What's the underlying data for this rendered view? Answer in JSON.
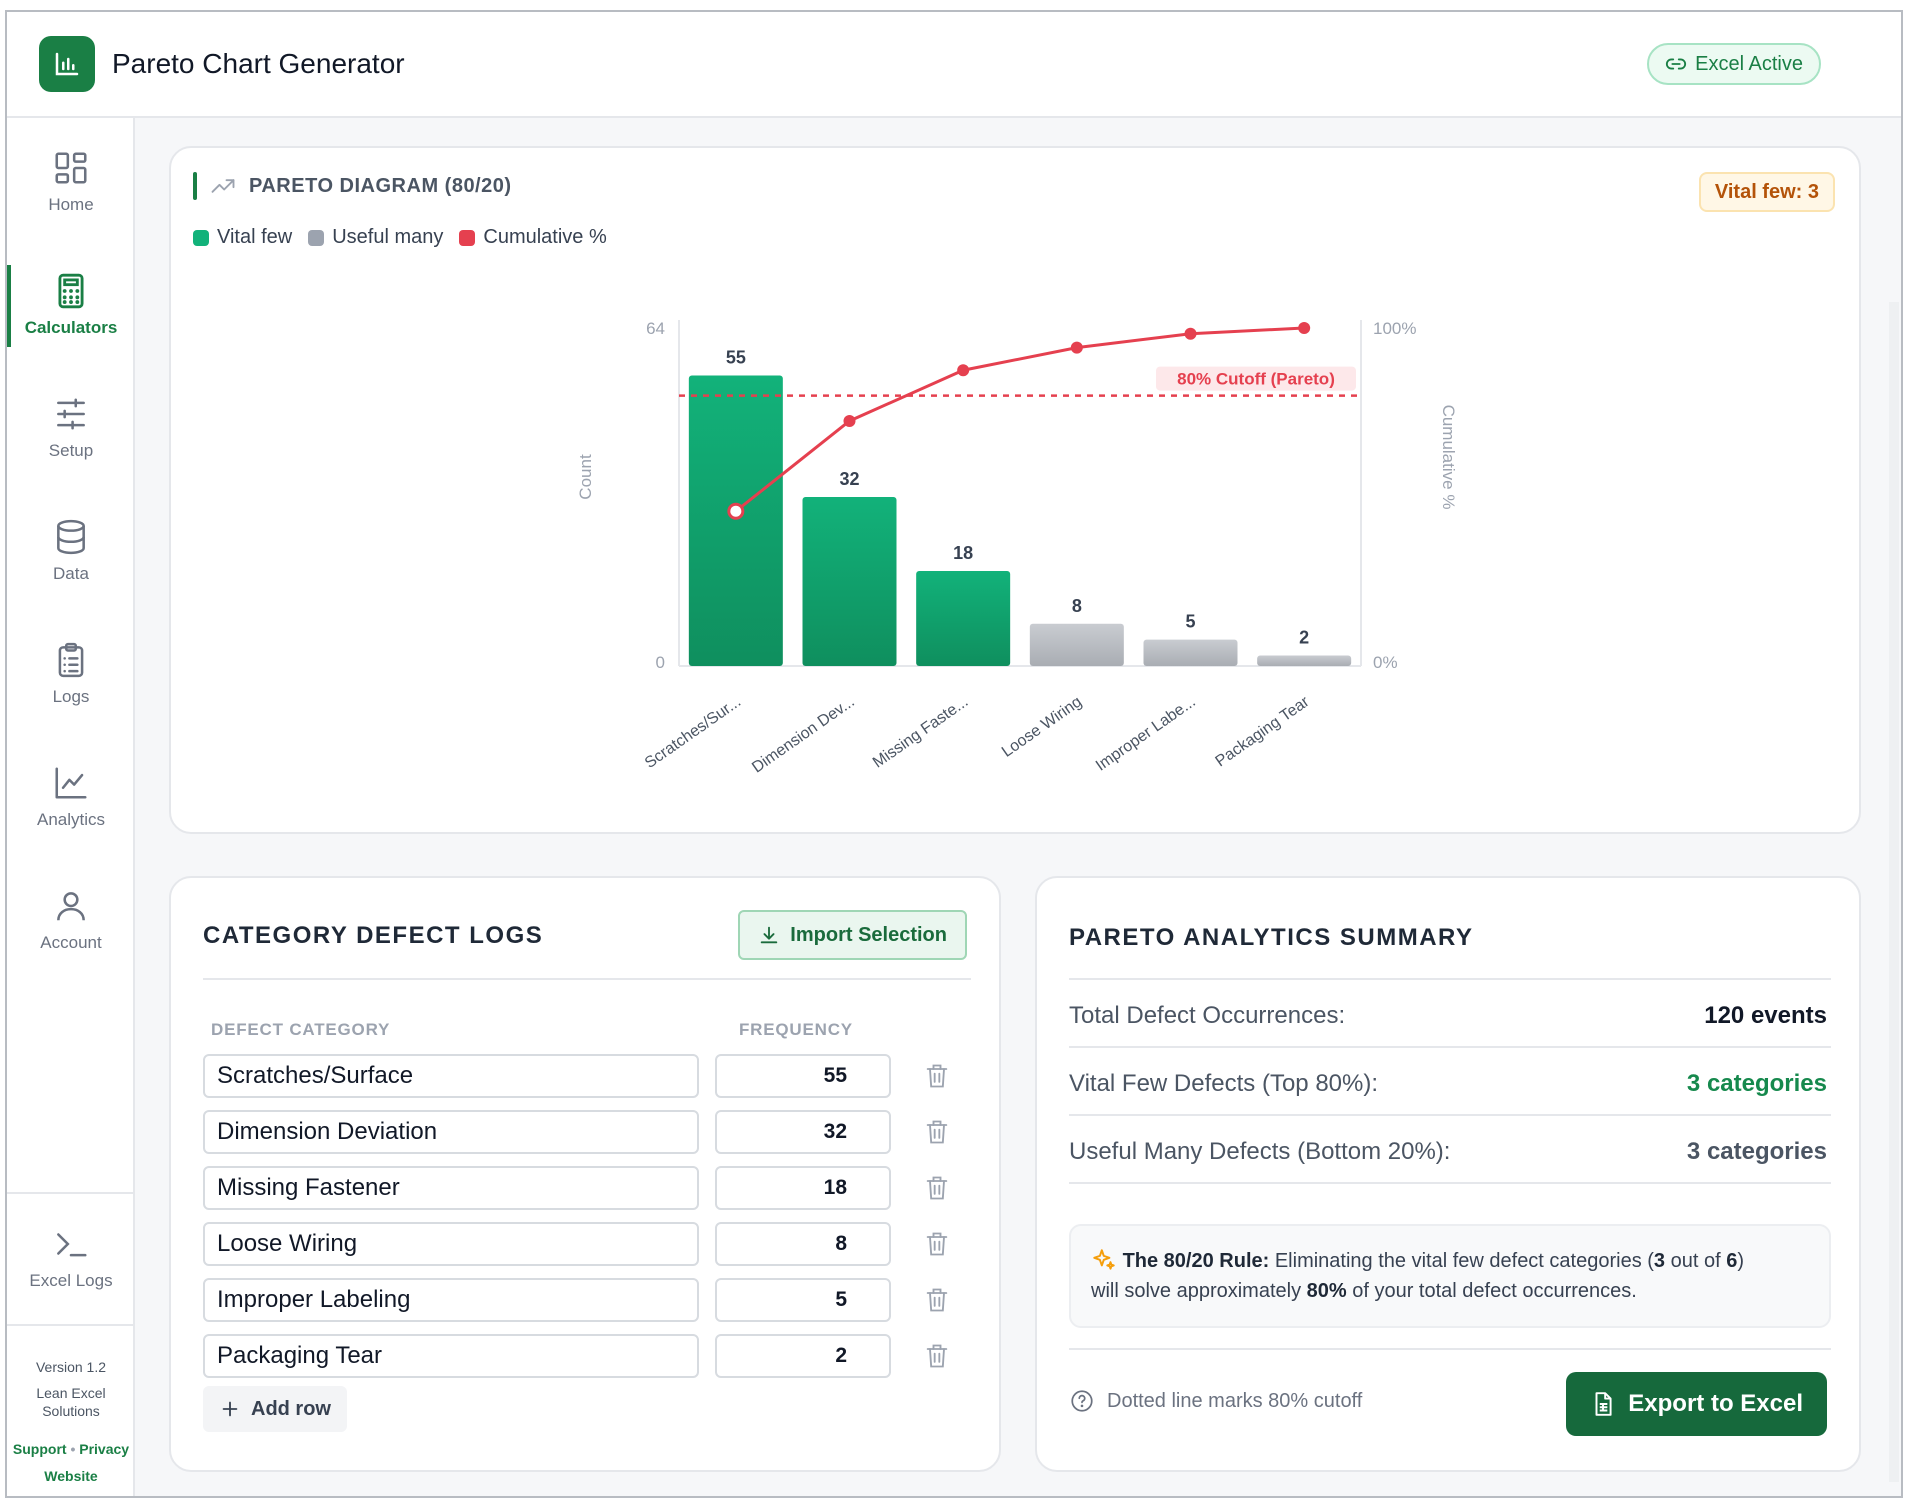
{
  "app": {
    "title": "Pareto Chart Generator",
    "status_pill": "Excel Active",
    "brand_color": "#1a7f45"
  },
  "sidebar": {
    "items": [
      {
        "label": "Home",
        "icon": "grid-icon",
        "active": false
      },
      {
        "label": "Calculators",
        "icon": "calculator-icon",
        "active": true
      },
      {
        "label": "Setup",
        "icon": "sliders-icon",
        "active": false
      },
      {
        "label": "Data",
        "icon": "database-icon",
        "active": false
      },
      {
        "label": "Logs",
        "icon": "clipboard-icon",
        "active": false
      },
      {
        "label": "Analytics",
        "icon": "line-chart-icon",
        "active": false
      },
      {
        "label": "Account",
        "icon": "user-icon",
        "active": false
      }
    ],
    "excel_logs": "Excel Logs",
    "version": "Version 1.2",
    "company": "Lean Excel Solutions",
    "links": {
      "support": "Support",
      "separator": "•",
      "privacy": "Privacy",
      "website": "Website"
    }
  },
  "chart_panel": {
    "title": "PARETO DIAGRAM (80/20)",
    "badge": "Vital few: 3",
    "legend": [
      {
        "label": "Vital few",
        "color": "#12b27a"
      },
      {
        "label": "Useful many",
        "color": "#9ca3af"
      },
      {
        "label": "Cumulative %",
        "color": "#e5404f"
      }
    ],
    "cutoff_label": "80% Cutoff (Pareto)"
  },
  "chart_data": {
    "type": "bar",
    "categories": [
      "Scratches/Sur...",
      "Dimension Dev...",
      "Missing Faste...",
      "Loose Wiring",
      "Improper Labe...",
      "Packaging Tear"
    ],
    "series": [
      {
        "name": "Count",
        "values": [
          55,
          32,
          18,
          8,
          5,
          2
        ],
        "groups": [
          "vital",
          "vital",
          "vital",
          "useful",
          "useful",
          "useful"
        ]
      },
      {
        "name": "Cumulative %",
        "values": [
          45.8,
          72.5,
          87.5,
          94.2,
          98.3,
          100
        ]
      }
    ],
    "ylabel": "Count",
    "y2label": "Cumulative %",
    "ylim": [
      0,
      64
    ],
    "y2lim": [
      0,
      100
    ],
    "y_ticks": [
      "64",
      "0"
    ],
    "y2_ticks": [
      "100%",
      "0%"
    ],
    "cutoff_pct": 80,
    "bar_colors": {
      "vital": "#12b27a",
      "useful": "#c2c5ca"
    },
    "line_color": "#e5404f"
  },
  "logs_panel": {
    "title": "CATEGORY DEFECT LOGS",
    "import_label": "Import Selection",
    "col_category": "DEFECT CATEGORY",
    "col_frequency": "FREQUENCY",
    "rows": [
      {
        "category": "Scratches/Surface",
        "frequency": "55"
      },
      {
        "category": "Dimension Deviation",
        "frequency": "32"
      },
      {
        "category": "Missing Fastener",
        "frequency": "18"
      },
      {
        "category": "Loose Wiring",
        "frequency": "8"
      },
      {
        "category": "Improper Labeling",
        "frequency": "5"
      },
      {
        "category": "Packaging Tear",
        "frequency": "2"
      }
    ],
    "add_row": "Add row"
  },
  "summary_panel": {
    "title": "PARETO ANALYTICS SUMMARY",
    "total_label": "Total Defect Occurrences:",
    "total_value": "120 events",
    "vital_label": "Vital Few Defects (Top 80%):",
    "vital_value": "3 categories",
    "useful_label": "Useful Many Defects (Bottom 20%):",
    "useful_value": "3 categories",
    "rule_title": "The 80/20 Rule:",
    "rule_text_1": "Eliminating the vital few defect categories (",
    "rule_n": "3",
    "rule_text_2": " out of ",
    "rule_total": "6",
    "rule_text_3": ")",
    "rule_text_4": "will solve approximately ",
    "rule_pct": "80%",
    "rule_text_5": " of your total defect occurrences.",
    "hint": "Dotted line marks 80% cutoff",
    "export_label": "Export to Excel"
  }
}
